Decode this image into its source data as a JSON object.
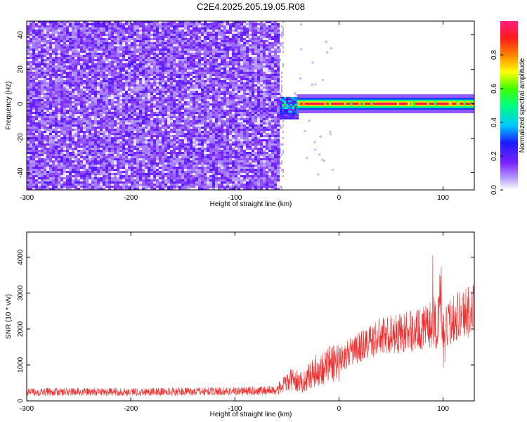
{
  "title": "C2E4.2025.205.19.05.R08",
  "colors": {
    "snr_line": "#f03030",
    "spectrogram_noise": "#7a22ff",
    "ridge_core": "#ff1a40"
  },
  "chart_data": [
    {
      "type": "heatmap",
      "xlabel": "Height of straight line (km)",
      "ylabel": "Frequency (Hz)",
      "xlim": [
        -300,
        130
      ],
      "ylim": [
        -50,
        48
      ],
      "xticks": [
        -300,
        -200,
        -100,
        0,
        100
      ],
      "yticks": [
        -40,
        -20,
        0,
        20,
        40
      ],
      "colorbar": {
        "label": "Normalized spectral amplitude",
        "range": [
          0,
          1
        ],
        "ticks": [
          0.0,
          0.2,
          0.4,
          0.6,
          0.8
        ],
        "colormap": "rainbow: white to purple to blue to cyan to green to yellow to red to magenta"
      },
      "regions": [
        {
          "x": [
            -300,
            -57
          ],
          "freq": [
            -50,
            48
          ],
          "amplitude": 0.15,
          "pattern": "noise"
        },
        {
          "x": [
            -57,
            -40
          ],
          "freq": [
            -8,
            4
          ],
          "amplitude": 0.45,
          "pattern": "onset cluster"
        },
        {
          "x": [
            -40,
            130
          ],
          "freq": [
            -2,
            2
          ],
          "amplitude": 0.95,
          "pattern": "ridge at 0 Hz"
        }
      ]
    },
    {
      "type": "line",
      "xlabel": "Height of straight line (km)",
      "ylabel": "SNR (10 * v/v)",
      "xlim": [
        -300,
        130
      ],
      "ylim": [
        0,
        4700
      ],
      "xticks": [
        -300,
        -200,
        -100,
        0,
        100
      ],
      "yticks": [
        0,
        1000,
        2000,
        3000,
        4000
      ],
      "grid": false,
      "series_envelope": {
        "x": [
          -300,
          -250,
          -200,
          -150,
          -100,
          -60,
          -45,
          -35,
          -25,
          -10,
          0,
          20,
          40,
          60,
          80,
          90,
          95,
          97,
          100,
          110,
          130
        ],
        "y": [
          250,
          250,
          250,
          260,
          270,
          300,
          600,
          500,
          800,
          1000,
          1150,
          1500,
          1800,
          1900,
          2000,
          2150,
          1700,
          3200,
          1900,
          2350,
          2550
        ]
      }
    }
  ]
}
